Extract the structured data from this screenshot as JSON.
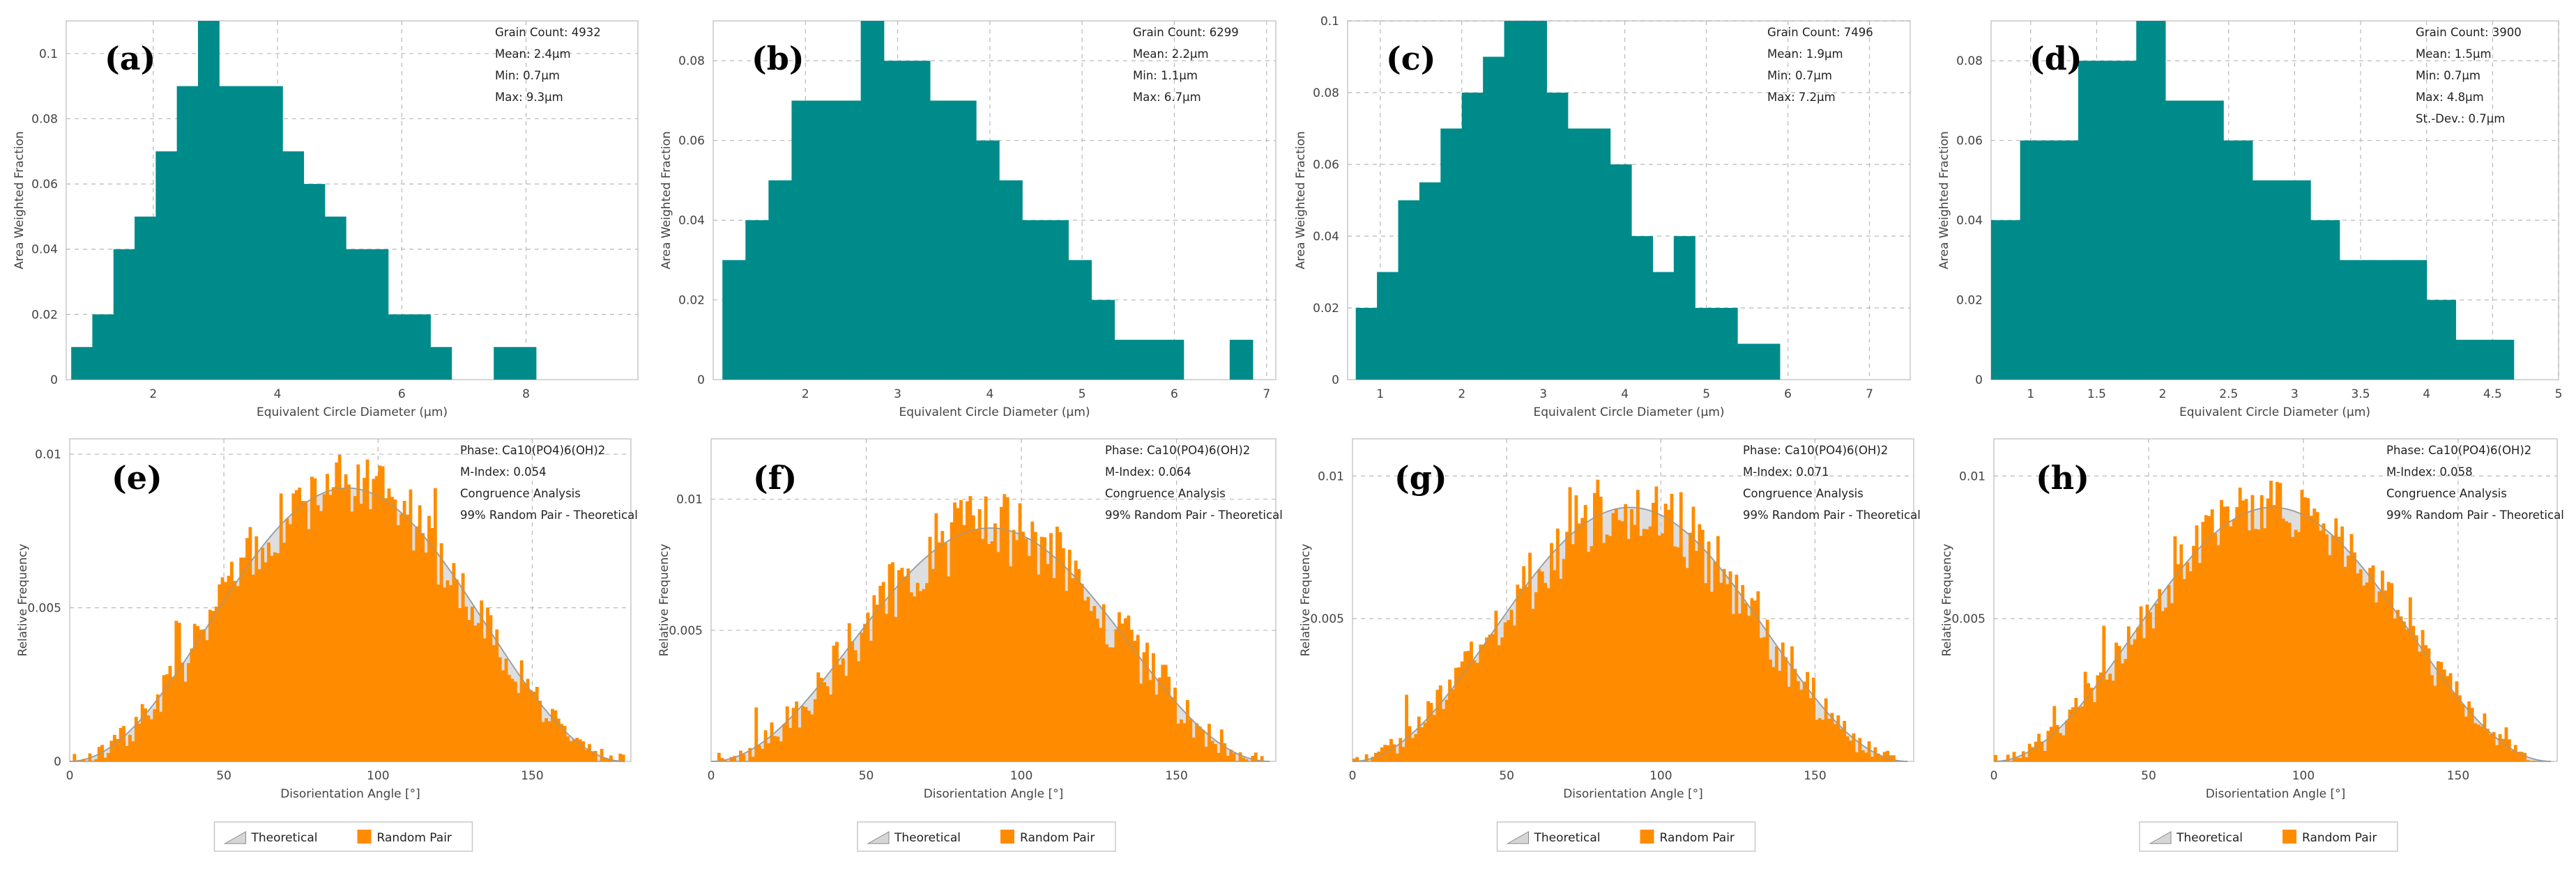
{
  "chart_data": [
    {
      "type": "bar",
      "panel": "(a)",
      "xlabel": "Equivalent Circle Diameter (µm)",
      "ylabel": "Area Weighted Fraction",
      "xlim": [
        0.6,
        9.8
      ],
      "ylim": [
        0,
        0.11
      ],
      "xticks": [
        2,
        4,
        6,
        8
      ],
      "yticks": [
        0,
        0.02,
        0.04,
        0.06,
        0.08,
        0.1
      ],
      "yticklabels": [
        "0",
        "0.02",
        "0.04",
        "0.06",
        "0.08",
        "0.1"
      ],
      "bin_start": 0.68,
      "bin_width": 0.34,
      "values": [
        0.01,
        0.02,
        0.04,
        0.05,
        0.07,
        0.09,
        0.11,
        0.09,
        0.09,
        0.09,
        0.07,
        0.06,
        0.05,
        0.04,
        0.04,
        0.02,
        0.02,
        0.01,
        0,
        0,
        0.01,
        0.01
      ],
      "info": [
        "Grain Count: 4932",
        "Mean: 2.4µm",
        "Min: 0.7µm",
        "Max: 9.3µm"
      ]
    },
    {
      "type": "bar",
      "panel": "(b)",
      "xlabel": "Equivalent Circle Diameter (µm)",
      "ylabel": "Area Weighted Fraction",
      "xlim": [
        1.0,
        7.1
      ],
      "ylim": [
        0,
        0.09
      ],
      "xticks": [
        2,
        3,
        4,
        5,
        6,
        7
      ],
      "yticks": [
        0,
        0.02,
        0.04,
        0.06,
        0.08
      ],
      "yticklabels": [
        "0",
        "0.02",
        "0.04",
        "0.06",
        "0.08"
      ],
      "bin_start": 1.1,
      "bin_width": 0.25,
      "values": [
        0.03,
        0.04,
        0.05,
        0.07,
        0.07,
        0.07,
        0.09,
        0.08,
        0.08,
        0.07,
        0.07,
        0.06,
        0.05,
        0.04,
        0.04,
        0.03,
        0.02,
        0.01,
        0.01,
        0.01,
        0,
        0,
        0.01
      ],
      "info": [
        "Grain Count: 6299",
        "Mean: 2.2µm",
        "Min: 1.1µm",
        "Max: 6.7µm"
      ]
    },
    {
      "type": "bar",
      "panel": "(c)",
      "xlabel": "Equivalent Circle Diameter (µm)",
      "ylabel": "Area Weighted Fraction",
      "xlim": [
        0.6,
        7.5
      ],
      "ylim": [
        0,
        0.1
      ],
      "xticks": [
        1,
        2,
        3,
        4,
        5,
        6,
        7
      ],
      "yticks": [
        0,
        0.02,
        0.04,
        0.06,
        0.08,
        0.1
      ],
      "yticklabels": [
        "0",
        "0.02",
        "0.04",
        "0.06",
        "0.08",
        "0.1"
      ],
      "bin_start": 0.7,
      "bin_width": 0.26,
      "values": [
        0.02,
        0.03,
        0.05,
        0.055,
        0.07,
        0.08,
        0.09,
        0.1,
        0.1,
        0.08,
        0.07,
        0.07,
        0.06,
        0.04,
        0.03,
        0.04,
        0.02,
        0.02,
        0.01,
        0.01
      ],
      "info": [
        "Grain Count: 7496",
        "Mean: 1.9µm",
        "Min: 0.7µm",
        "Max: 7.2µm"
      ]
    },
    {
      "type": "bar",
      "panel": "(d)",
      "xlabel": "Equivalent Circle Diameter (µm)",
      "ylabel": "Area Weighted Fraction",
      "xlim": [
        0.7,
        5.0
      ],
      "ylim": [
        0,
        0.09
      ],
      "xticks": [
        1,
        1.5,
        2,
        2.5,
        3,
        3.5,
        4,
        4.5,
        5
      ],
      "yticks": [
        0,
        0.02,
        0.04,
        0.06,
        0.08
      ],
      "yticklabels": [
        "0",
        "0.02",
        "0.04",
        "0.06",
        "0.08"
      ],
      "bin_start": 0.7,
      "bin_width": 0.22,
      "values": [
        0.04,
        0.06,
        0.06,
        0.08,
        0.08,
        0.09,
        0.07,
        0.07,
        0.06,
        0.05,
        0.05,
        0.04,
        0.03,
        0.03,
        0.03,
        0.02,
        0.01,
        0.01
      ],
      "info": [
        "Grain Count: 3900",
        "Mean: 1.5µm",
        "Min: 0.7µm",
        "Max: 4.8µm",
        "St.-Dev.: 0.7µm"
      ]
    },
    {
      "type": "bar",
      "panel": "(e)",
      "seed": 7,
      "xlabel": "Disorientation Angle [°]",
      "ylabel": "Relative Frequency",
      "xlim": [
        0,
        182
      ],
      "ylim": [
        0,
        0.0105
      ],
      "xticks": [
        0,
        50,
        100,
        150
      ],
      "yticks": [
        0,
        0.005,
        0.01
      ],
      "yticklabels": [
        "0",
        "0.005",
        "0.01"
      ],
      "bin_width": 1,
      "peak": 0.0089,
      "noise": 0.0011,
      "series": [
        {
          "name": "Theoretical",
          "color": "#c8c8c8"
        },
        {
          "name": "Random Pair",
          "color": "#ff8c00"
        }
      ],
      "info": [
        "Phase: Ca10(PO4)6(OH)2",
        "M-Index: 0.054",
        "Congruence Analysis",
        "99% Random Pair - Theoretical"
      ]
    },
    {
      "type": "bar",
      "panel": "(f)",
      "seed": 19,
      "xlabel": "Disorientation Angle [°]",
      "ylabel": "Relative Frequency",
      "xlim": [
        0,
        182
      ],
      "ylim": [
        0,
        0.0123
      ],
      "xticks": [
        0,
        50,
        100,
        150
      ],
      "yticks": [
        0.005,
        0.01
      ],
      "yticklabels": [
        "0.005",
        "0.01"
      ],
      "bin_width": 1,
      "peak": 0.0089,
      "noise": 0.0014,
      "series": [
        {
          "name": "Theoretical",
          "color": "#c8c8c8"
        },
        {
          "name": "Random Pair",
          "color": "#ff8c00"
        }
      ],
      "info": [
        "Phase: Ca10(PO4)6(OH)2",
        "M-Index: 0.064",
        "Congruence Analysis",
        "99% Random Pair - Theoretical"
      ]
    },
    {
      "type": "bar",
      "panel": "(g)",
      "seed": 31,
      "xlabel": "Disorientation Angle [°]",
      "ylabel": "Relative Frequency",
      "xlim": [
        0,
        182
      ],
      "ylim": [
        0,
        0.0113
      ],
      "xticks": [
        0,
        50,
        100,
        150
      ],
      "yticks": [
        0.005,
        0.01
      ],
      "yticklabels": [
        "0.005",
        "0.01"
      ],
      "bin_width": 1,
      "peak": 0.0089,
      "noise": 0.0013,
      "series": [
        {
          "name": "Theoretical",
          "color": "#c8c8c8"
        },
        {
          "name": "Random Pair",
          "color": "#ff8c00"
        }
      ],
      "info": [
        "Phase: Ca10(PO4)6(OH)2",
        "M-Index: 0.071",
        "Congruence Analysis",
        "99% Random Pair - Theoretical"
      ]
    },
    {
      "type": "bar",
      "panel": "(h)",
      "seed": 43,
      "xlabel": "Disorientation Angle [°]",
      "ylabel": "Relative Frequency",
      "xlim": [
        0,
        182
      ],
      "ylim": [
        0,
        0.0113
      ],
      "xticks": [
        0,
        50,
        100,
        150
      ],
      "yticks": [
        0.005,
        0.01
      ],
      "yticklabels": [
        "0.005",
        "0.01"
      ],
      "bin_width": 1,
      "peak": 0.0089,
      "noise": 0.001,
      "series": [
        {
          "name": "Theoretical",
          "color": "#c8c8c8"
        },
        {
          "name": "Random Pair",
          "color": "#ff8c00"
        }
      ],
      "info": [
        "Phase: Ca10(PO4)6(OH)2",
        "M-Index: 0.058",
        "Congruence Analysis",
        "99% Random Pair - Theoretical"
      ]
    }
  ],
  "colors": {
    "grain_bars": "#008b8b",
    "random_pair": "#ff8c00",
    "theoretical": "#c8c8c8"
  }
}
